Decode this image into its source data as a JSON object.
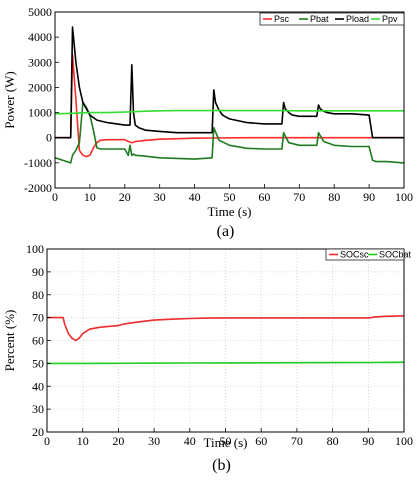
{
  "colors": {
    "Psc": "#ff2a2a",
    "Pbat": "#1f7a1f",
    "Pload": "#000000",
    "Ppv": "#33dd33",
    "SOCsc": "#ee2a2a",
    "SOCbat": "#22cc22"
  },
  "chart_data": [
    {
      "type": "line",
      "label": "(a)",
      "xlabel": "Time (s)",
      "ylabel": "Power (W)",
      "xlim": [
        0,
        100
      ],
      "ylim": [
        -2000,
        5000
      ],
      "xticks": [
        "0",
        "10",
        "20",
        "30",
        "40",
        "50",
        "60",
        "70",
        "80",
        "90",
        "100"
      ],
      "yticks": [
        "-2000",
        "-1000",
        "0",
        "1000",
        "2000",
        "3000",
        "4000",
        "5000"
      ],
      "grid": false,
      "legend_position": "top-right",
      "series": [
        {
          "name": "Psc",
          "x": [
            0,
            4.5,
            5,
            6,
            7,
            8,
            9,
            10,
            11,
            12,
            13,
            15,
            20,
            21,
            22,
            23,
            25,
            30,
            40,
            45,
            50,
            60,
            65,
            70,
            75,
            80,
            90,
            91,
            100
          ],
          "y": [
            0,
            0,
            3300,
            1500,
            -500,
            -700,
            -750,
            -700,
            -400,
            -200,
            -100,
            -80,
            -80,
            -150,
            -200,
            -150,
            -120,
            -60,
            -20,
            -10,
            -5,
            0,
            0,
            0,
            0,
            0,
            0,
            0,
            0
          ]
        },
        {
          "name": "Pbat",
          "x": [
            0,
            4.5,
            5,
            6,
            7,
            8,
            9,
            10,
            11,
            12,
            13,
            15,
            20,
            21,
            21.5,
            22,
            22.5,
            23,
            25,
            30,
            40,
            45,
            45.5,
            47,
            50,
            55,
            60,
            65,
            65.5,
            67,
            70,
            75,
            75.5,
            77,
            80,
            85,
            90,
            91,
            92,
            95,
            100
          ],
          "y": [
            -800,
            -1000,
            -700,
            -500,
            -200,
            1400,
            1200,
            900,
            300,
            -400,
            -450,
            -450,
            -450,
            -700,
            -300,
            -700,
            -650,
            -700,
            -720,
            -800,
            -850,
            -800,
            400,
            -100,
            -300,
            -420,
            -450,
            -450,
            200,
            -200,
            -300,
            -300,
            200,
            -150,
            -300,
            -350,
            -350,
            -900,
            -950,
            -950,
            -1000
          ]
        },
        {
          "name": "Pload",
          "x": [
            0,
            4.5,
            5,
            6,
            7,
            8,
            10,
            12,
            15,
            20,
            21.5,
            22,
            22.5,
            23,
            24,
            26,
            30,
            35,
            40,
            45,
            45.5,
            46,
            47,
            48,
            50,
            55,
            60,
            65,
            65.5,
            66,
            67,
            68,
            70,
            75,
            75.5,
            76,
            77,
            78,
            80,
            85,
            90,
            91,
            95,
            100
          ],
          "y": [
            0,
            0,
            4400,
            3000,
            2000,
            1400,
            900,
            700,
            600,
            500,
            500,
            2900,
            1000,
            500,
            400,
            300,
            250,
            200,
            200,
            200,
            1900,
            1400,
            1100,
            900,
            750,
            600,
            550,
            550,
            1400,
            1150,
            1000,
            900,
            850,
            850,
            1300,
            1150,
            1050,
            1000,
            950,
            950,
            900,
            0,
            0,
            0
          ]
        },
        {
          "name": "Ppv",
          "x": [
            0,
            5,
            10,
            15,
            20,
            25,
            30,
            35,
            40,
            45,
            50,
            55,
            60,
            65,
            70,
            75,
            80,
            85,
            90,
            95,
            100
          ],
          "y": [
            950,
            970,
            1000,
            1000,
            1020,
            1050,
            1070,
            1080,
            1080,
            1080,
            1080,
            1080,
            1080,
            1080,
            1070,
            1070,
            1070,
            1070,
            1070,
            1070,
            1070
          ]
        }
      ]
    },
    {
      "type": "line",
      "label": "(b)",
      "xlabel": "Time (s)",
      "ylabel": "Percent (%)",
      "xlim": [
        0,
        100
      ],
      "ylim": [
        20,
        100
      ],
      "xticks": [
        "0",
        "10",
        "20",
        "30",
        "40",
        "50",
        "60",
        "70",
        "80",
        "90",
        "100"
      ],
      "yticks": [
        "20",
        "30",
        "40",
        "50",
        "60",
        "70",
        "80",
        "90",
        "100"
      ],
      "grid": true,
      "legend_position": "top-right",
      "series": [
        {
          "name": "SOCsc",
          "x": [
            0,
            4.5,
            5,
            6,
            7,
            8,
            9,
            10,
            12,
            15,
            20,
            21,
            22,
            25,
            30,
            35,
            40,
            45,
            50,
            60,
            70,
            80,
            90,
            92,
            95,
            100
          ],
          "y": [
            70,
            70,
            67,
            63,
            61,
            60,
            61,
            63,
            65,
            65.8,
            66.5,
            67,
            67.3,
            68,
            68.9,
            69.3,
            69.6,
            69.8,
            69.9,
            69.9,
            69.9,
            69.9,
            69.9,
            70.3,
            70.6,
            70.8
          ]
        },
        {
          "name": "SOCbat",
          "x": [
            0,
            10,
            20,
            30,
            40,
            50,
            60,
            70,
            80,
            90,
            100
          ],
          "y": [
            50,
            50,
            50.05,
            50.1,
            50.15,
            50.2,
            50.25,
            50.3,
            50.35,
            50.4,
            50.5
          ]
        }
      ]
    }
  ]
}
